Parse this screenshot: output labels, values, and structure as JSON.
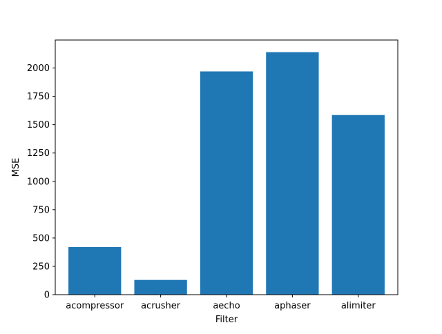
{
  "chart_data": {
    "type": "bar",
    "title": "",
    "xlabel": "Filter",
    "ylabel": "MSE",
    "categories": [
      "acompressor",
      "acrusher",
      "aecho",
      "aphaser",
      "alimiter"
    ],
    "values": [
      420,
      130,
      1970,
      2140,
      1585
    ],
    "ylim": [
      0,
      2247
    ],
    "yticks": [
      0,
      250,
      500,
      750,
      1000,
      1250,
      1500,
      1750,
      2000
    ],
    "ytick_labels": [
      "0",
      "250",
      "500",
      "750",
      "1000",
      "1250",
      "1500",
      "1750",
      "2000"
    ],
    "grid": false,
    "legend": "none",
    "bar_color": "#1f77b4"
  }
}
